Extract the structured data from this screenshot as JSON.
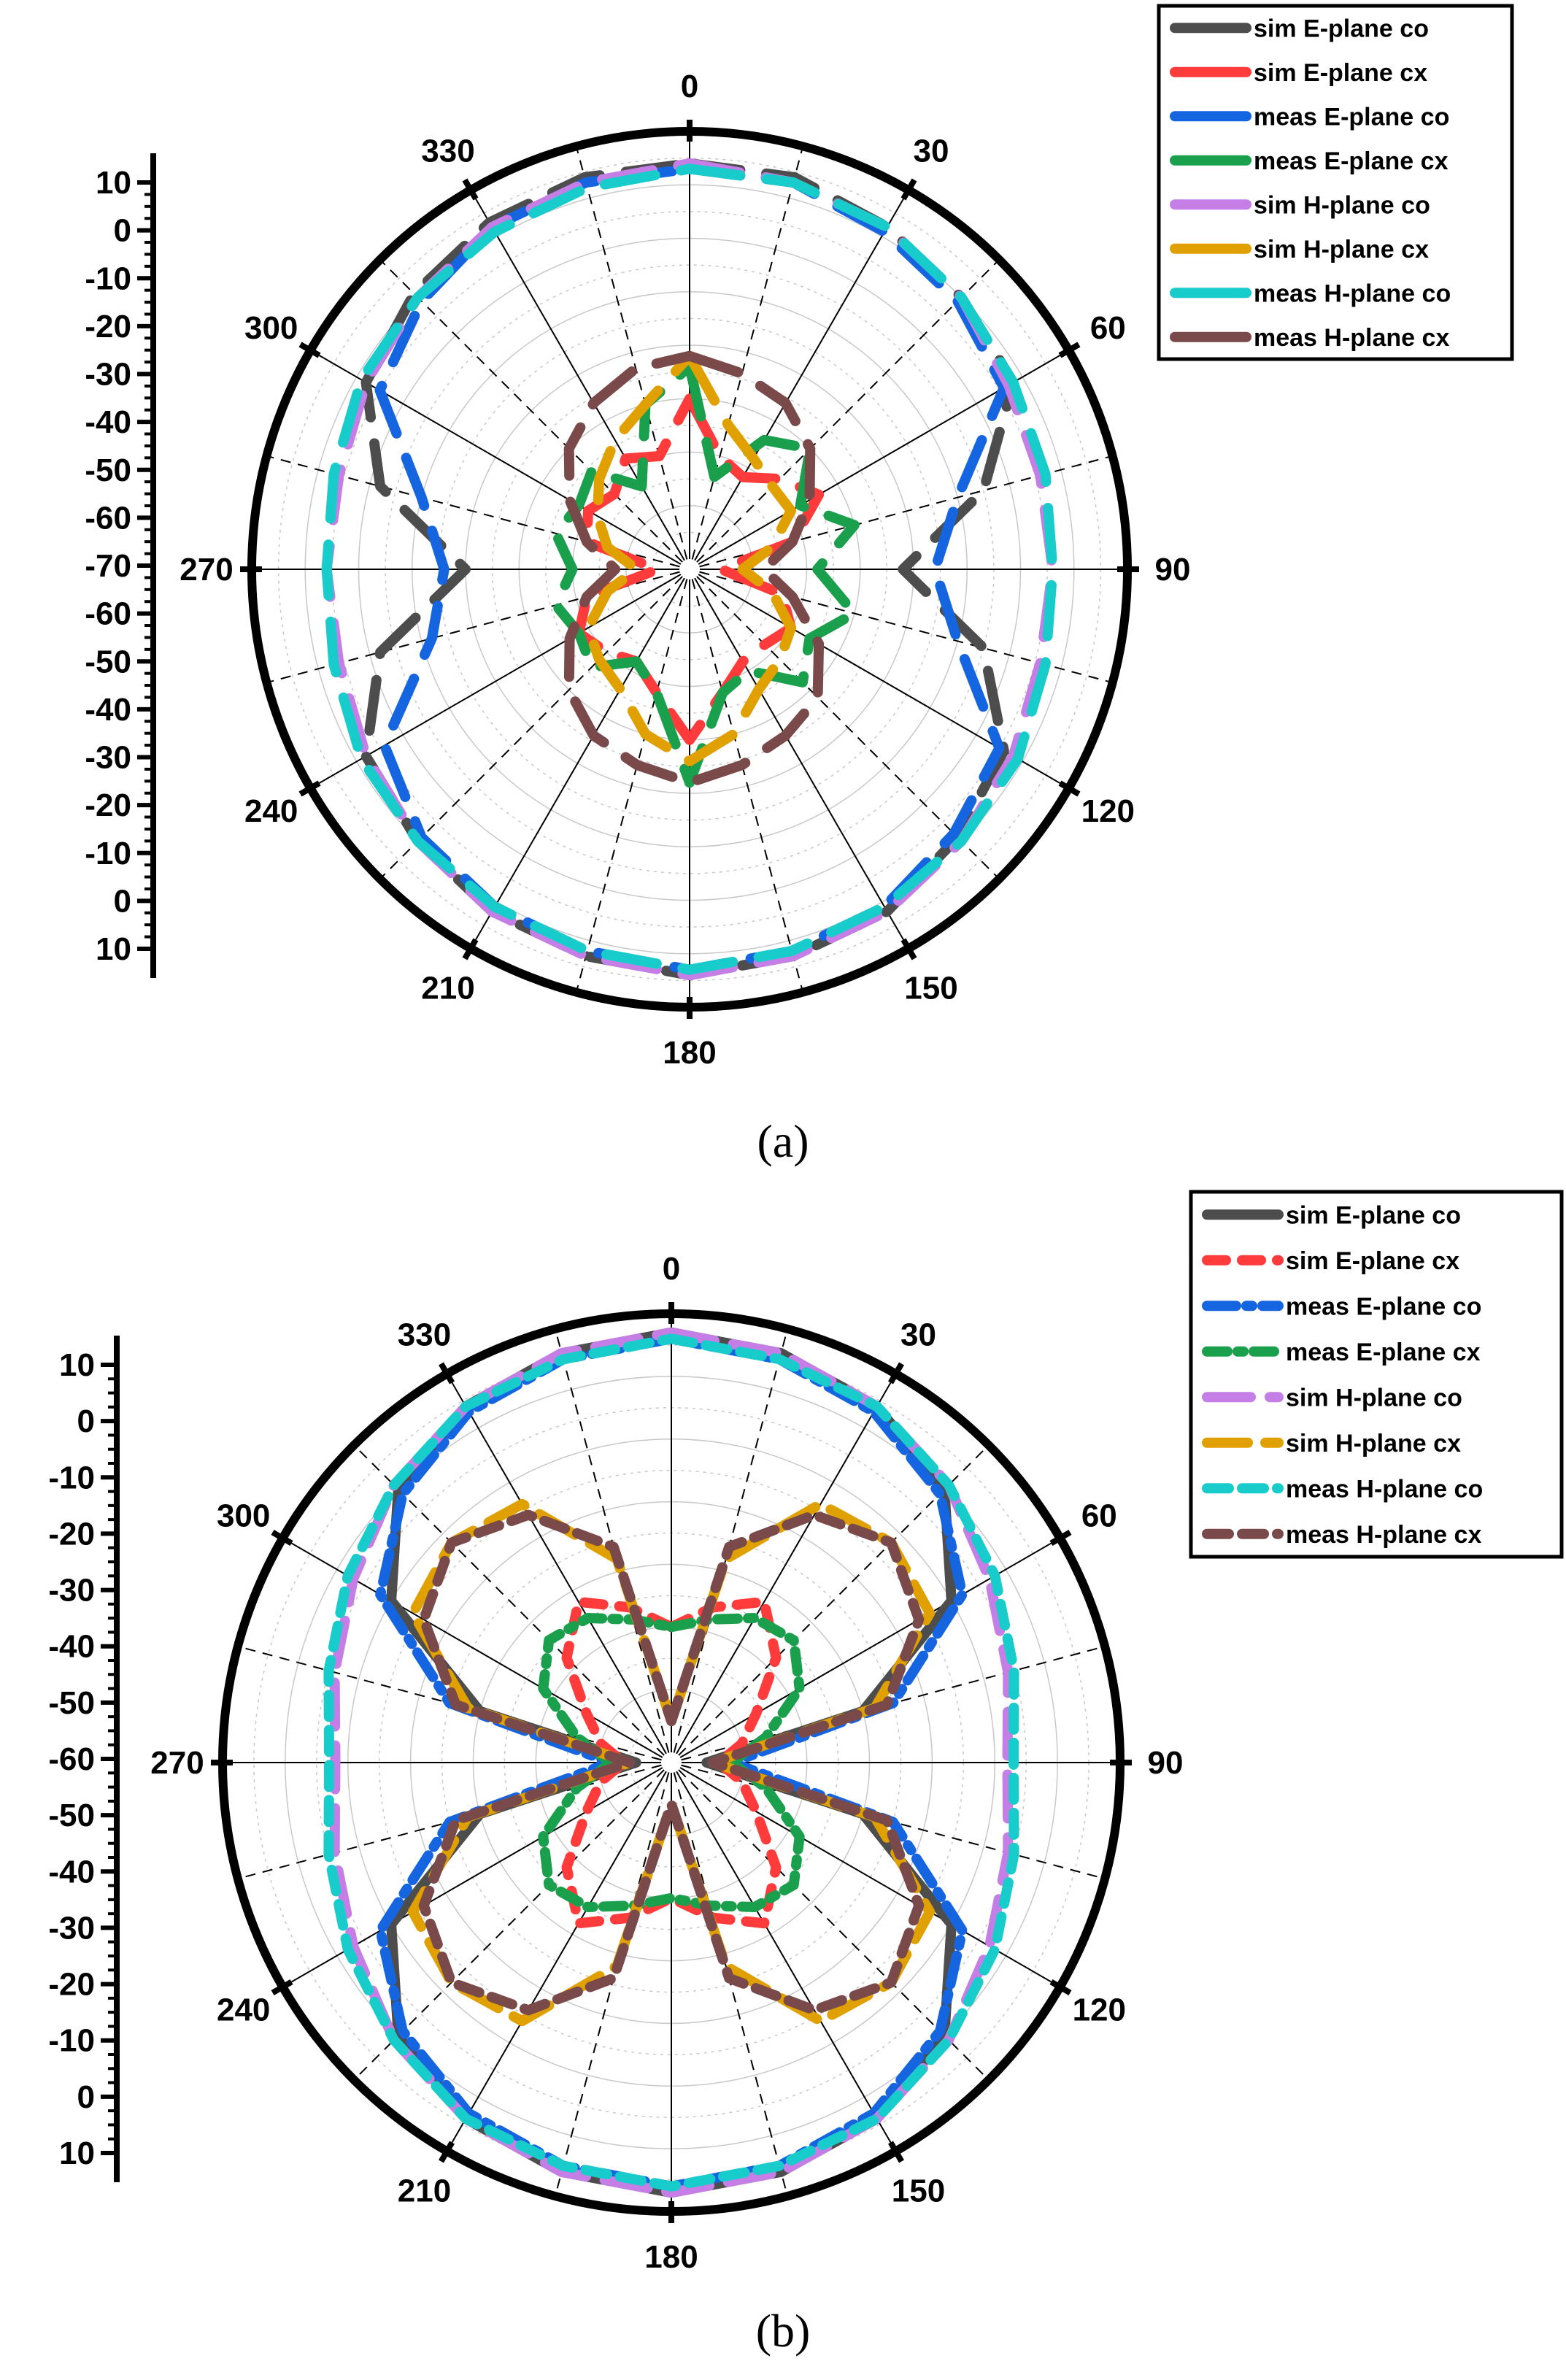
{
  "legend_labels": [
    "sim E-plane co",
    "sim E-plane cx",
    "meas E-plane co",
    "meas E-plane cx",
    "sim H-plane co",
    "sim H-plane cx",
    "meas H-plane co",
    "meas H-plane cx"
  ],
  "series_style": {
    "sim E-plane co": {
      "color": "#4d4d4d"
    },
    "sim E-plane cx": {
      "color": "#ff3b3b"
    },
    "meas E-plane co": {
      "color": "#1565e0"
    },
    "meas E-plane cx": {
      "color": "#1aa04c"
    },
    "sim H-plane co": {
      "color": "#c57ee6"
    },
    "sim H-plane cx": {
      "color": "#e0a000"
    },
    "meas H-plane co": {
      "color": "#19cccc"
    },
    "meas H-plane cx": {
      "color": "#7a4a4a"
    }
  },
  "chart_data": [
    {
      "caption": "(a)",
      "type": "polar-line",
      "angle_ticks": [
        "0",
        "30",
        "60",
        "90",
        "120",
        "150",
        "180",
        "210",
        "240",
        "270",
        "300",
        "330"
      ],
      "radial_tick_labels": [
        "10",
        "0",
        "-10",
        "-20",
        "-30",
        "-40",
        "-50",
        "-60",
        "-70",
        "-60",
        "-50",
        "-40",
        "-30",
        "-20",
        "-10",
        "0",
        "10"
      ],
      "rlim": [
        -70,
        10
      ],
      "theta_deg": [
        0,
        15,
        30,
        45,
        60,
        75,
        90,
        105,
        120,
        135,
        150,
        165,
        180,
        195,
        210,
        225,
        240,
        255,
        270,
        285,
        300,
        315,
        330,
        345
      ],
      "series": [
        {
          "name": "sim E-plane co",
          "r": [
            4,
            4,
            2,
            0,
            -2,
            -15,
            -32,
            -15,
            -4,
            -1,
            2,
            3,
            4,
            3,
            2,
            0,
            -2,
            -12,
            -30,
            -12,
            -2,
            1,
            3,
            4
          ]
        },
        {
          "name": "sim E-plane cx",
          "r": [
            -40,
            -50,
            -52,
            -48,
            -44,
            -52,
            -66,
            -54,
            -50,
            -52,
            -52,
            -48,
            -40,
            -48,
            -52,
            -50,
            -48,
            -52,
            -66,
            -52,
            -50,
            -52,
            -48,
            -50
          ]
        },
        {
          "name": "meas E-plane co",
          "r": [
            3,
            3,
            1,
            -1,
            -4,
            -20,
            -26,
            -20,
            -5,
            -2,
            1,
            2,
            3,
            2,
            1,
            -1,
            -6,
            -22,
            -26,
            -20,
            -5,
            -1,
            2,
            3
          ]
        },
        {
          "name": "meas E-plane cx",
          "r": [
            -34,
            -54,
            -44,
            -40,
            -48,
            -40,
            -48,
            -40,
            -46,
            -42,
            -50,
            -48,
            -32,
            -48,
            -52,
            -46,
            -48,
            -46,
            -50,
            -46,
            -48,
            -46,
            -54,
            -40
          ]
        },
        {
          "name": "sim H-plane co",
          "r": [
            4,
            3,
            2,
            0,
            -3,
            -4,
            -4,
            -4,
            -2,
            0,
            2,
            3,
            4,
            3,
            2,
            0,
            -2,
            -4,
            -4,
            -4,
            -2,
            0,
            2,
            3
          ]
        },
        {
          "name": "sim H-plane cx",
          "r": [
            -32,
            -44,
            -48,
            -50,
            -50,
            -56,
            -62,
            -56,
            -50,
            -48,
            -46,
            -40,
            -36,
            -40,
            -46,
            -48,
            -50,
            -56,
            -62,
            -56,
            -52,
            -48,
            -44,
            -40
          ]
        },
        {
          "name": "meas H-plane co",
          "r": [
            3,
            3,
            2,
            0,
            -2,
            -3,
            -4,
            -3,
            -1,
            0,
            1,
            2,
            3,
            2,
            1,
            0,
            -1,
            -3,
            -4,
            -3,
            -1,
            0,
            1,
            2
          ]
        },
        {
          "name": "meas H-plane cx",
          "r": [
            -32,
            -34,
            -36,
            -40,
            -46,
            -52,
            -58,
            -52,
            -44,
            -38,
            -36,
            -34,
            -32,
            -34,
            -36,
            -40,
            -46,
            -52,
            -58,
            -52,
            -46,
            -40,
            -36,
            -33
          ]
        }
      ]
    },
    {
      "caption": "(b)",
      "type": "polar-line",
      "angle_ticks": [
        "0",
        "30",
        "60",
        "90",
        "120",
        "150",
        "180",
        "210",
        "240",
        "270",
        "300",
        "330"
      ],
      "radial_tick_labels": [
        "10",
        "0",
        "-10",
        "-20",
        "-30",
        "-40",
        "-50",
        "-60",
        "-50",
        "-40",
        "-30",
        "-20",
        "-10",
        "0",
        "10"
      ],
      "rlim": [
        -60,
        10
      ],
      "theta_deg": [
        0,
        15,
        30,
        45,
        60,
        75,
        90,
        105,
        120,
        135,
        150,
        165,
        180,
        195,
        210,
        225,
        240,
        255,
        270,
        285,
        300,
        315,
        330,
        345
      ],
      "series": [
        {
          "name": "sim E-plane co",
          "r": [
            7,
            6,
            4,
            0,
            -10,
            -30,
            -56,
            -30,
            -10,
            0,
            4,
            6,
            7,
            6,
            4,
            0,
            -10,
            -30,
            -56,
            -30,
            -10,
            0,
            4,
            6
          ]
        },
        {
          "name": "sim E-plane cx",
          "r": [
            -40,
            -36,
            -32,
            -38,
            -46,
            -50,
            -54,
            -50,
            -46,
            -38,
            -32,
            -36,
            -40,
            -36,
            -32,
            -38,
            -46,
            -50,
            -54,
            -50,
            -46,
            -38,
            -32,
            -36
          ]
        },
        {
          "name": "meas E-plane co",
          "r": [
            6,
            5,
            3,
            -1,
            -8,
            -25,
            -52,
            -25,
            -8,
            -1,
            3,
            5,
            6,
            5,
            3,
            -1,
            -8,
            -25,
            -52,
            -25,
            -8,
            -1,
            3,
            5
          ]
        },
        {
          "name": "meas E-plane cx",
          "r": [
            -40,
            -38,
            -35,
            -34,
            -38,
            -46,
            -52,
            -46,
            -38,
            -34,
            -35,
            -38,
            -40,
            -38,
            -35,
            -34,
            -38,
            -46,
            -52,
            -46,
            -38,
            -34,
            -35,
            -38
          ]
        },
        {
          "name": "sim H-plane co",
          "r": [
            7,
            6,
            4,
            1,
            -3,
            -6,
            -8,
            -6,
            -3,
            1,
            4,
            6,
            7,
            6,
            4,
            1,
            -3,
            -6,
            -8,
            -6,
            -3,
            1,
            4,
            6
          ]
        },
        {
          "name": "sim H-plane cx",
          "r": [
            -55,
            -28,
            -14,
            -12,
            -14,
            -28,
            -55,
            -28,
            -14,
            -12,
            -14,
            -28,
            -55,
            -28,
            -14,
            -12,
            -14,
            -28,
            -55,
            -28,
            -14,
            -12,
            -14,
            -28
          ]
        },
        {
          "name": "meas H-plane co",
          "r": [
            6,
            5,
            4,
            1,
            -2,
            -5,
            -7,
            -5,
            -2,
            1,
            4,
            5,
            6,
            5,
            4,
            1,
            -2,
            -5,
            -7,
            -5,
            -2,
            1,
            4,
            5
          ]
        },
        {
          "name": "meas H-plane cx",
          "r": [
            -55,
            -26,
            -16,
            -12,
            -16,
            -26,
            -55,
            -26,
            -16,
            -12,
            -16,
            -26,
            -55,
            -26,
            -16,
            -12,
            -16,
            -26,
            -55,
            -26,
            -16,
            -12,
            -16,
            -26
          ]
        }
      ]
    }
  ]
}
